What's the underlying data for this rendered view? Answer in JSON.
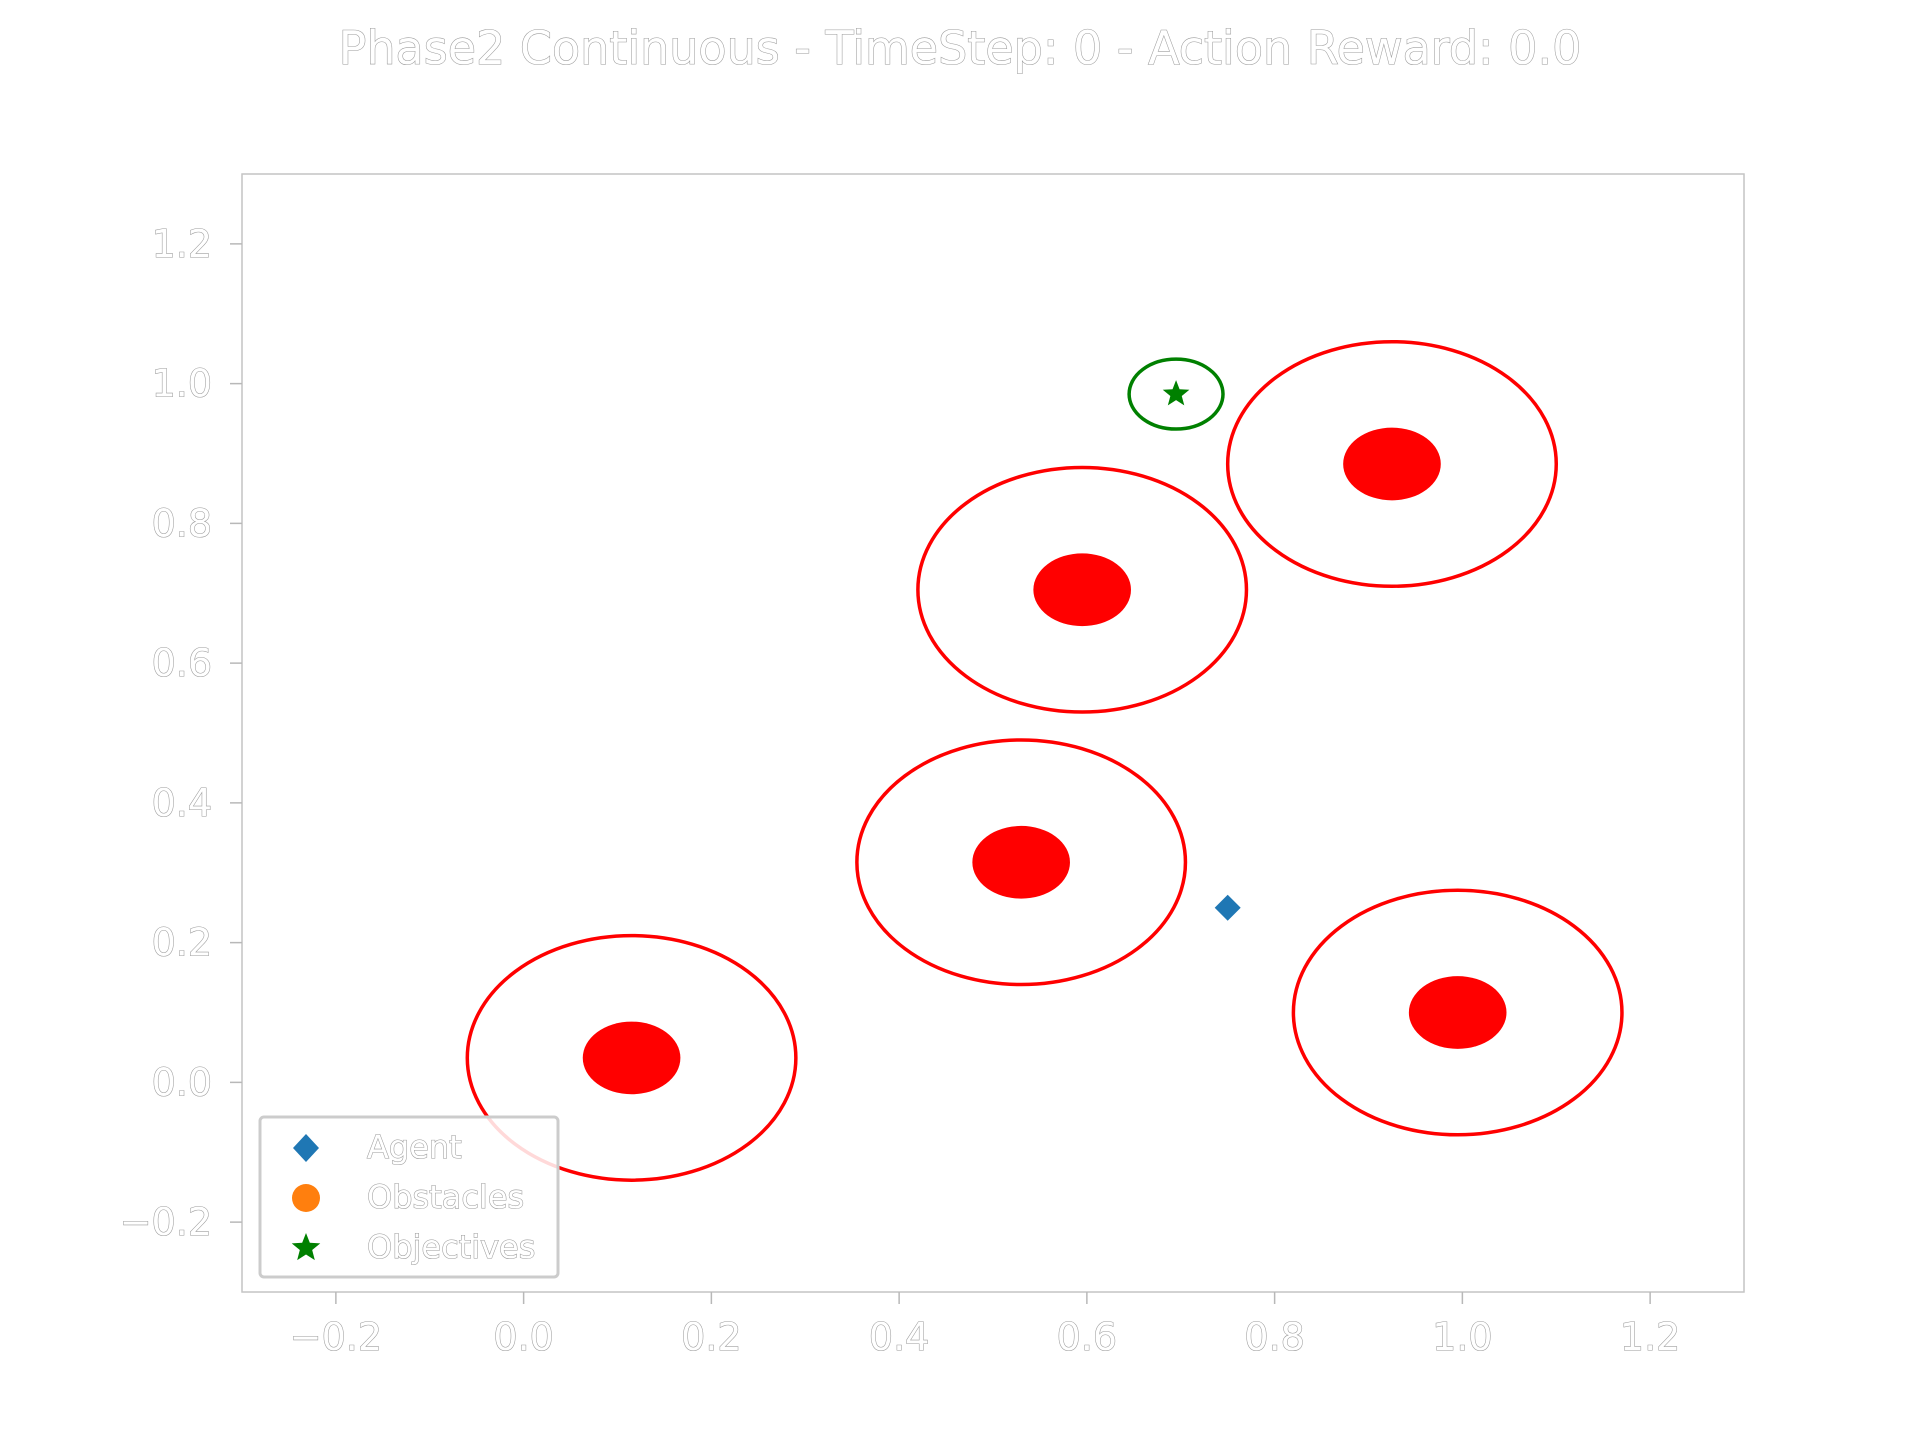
{
  "chart_data": {
    "type": "scatter",
    "title": "Phase2 Continuous - TimeStep: 0 - Action Reward: 0.0",
    "xlabel": "",
    "ylabel": "",
    "xlim": [
      -0.3,
      1.3
    ],
    "ylim": [
      -0.3,
      1.3
    ],
    "x_ticks": [
      -0.2,
      0.0,
      0.2,
      0.4,
      0.6,
      0.8,
      1.0,
      1.2
    ],
    "y_ticks": [
      -0.2,
      0.0,
      0.2,
      0.4,
      0.6,
      0.8,
      1.0,
      1.2
    ],
    "x_tick_labels": [
      "−0.2",
      "0.0",
      "0.2",
      "0.4",
      "0.6",
      "0.8",
      "1.0",
      "1.2"
    ],
    "y_tick_labels": [
      "−0.2",
      "0.0",
      "0.2",
      "0.4",
      "0.6",
      "0.8",
      "1.0",
      "1.2"
    ],
    "grid": false,
    "legend_position": "lower-left",
    "legend": [
      {
        "label": "Agent",
        "marker": "diamond",
        "color": "#1f77b4"
      },
      {
        "label": "Obstacles",
        "marker": "circle",
        "color": "#ff7f0e"
      },
      {
        "label": "Objectives",
        "marker": "star",
        "color": "#008000"
      }
    ],
    "series": [
      {
        "name": "Agent",
        "color": "#1f77b4",
        "marker": "diamond",
        "points": [
          {
            "x": 0.75,
            "y": 0.25
          }
        ]
      },
      {
        "name": "Obstacles",
        "color": "#ff0000",
        "marker": "filled-circle-with-ring",
        "core_radius": 0.052,
        "ring_radius": 0.175,
        "points": [
          {
            "x": 0.115,
            "y": 0.035
          },
          {
            "x": 0.53,
            "y": 0.315
          },
          {
            "x": 0.595,
            "y": 0.705
          },
          {
            "x": 0.925,
            "y": 0.885
          },
          {
            "x": 0.995,
            "y": 0.1
          }
        ]
      },
      {
        "name": "Objectives",
        "color": "#008000",
        "marker": "star-with-ring",
        "ring_radius": 0.05,
        "points": [
          {
            "x": 0.695,
            "y": 0.985
          }
        ]
      }
    ]
  }
}
